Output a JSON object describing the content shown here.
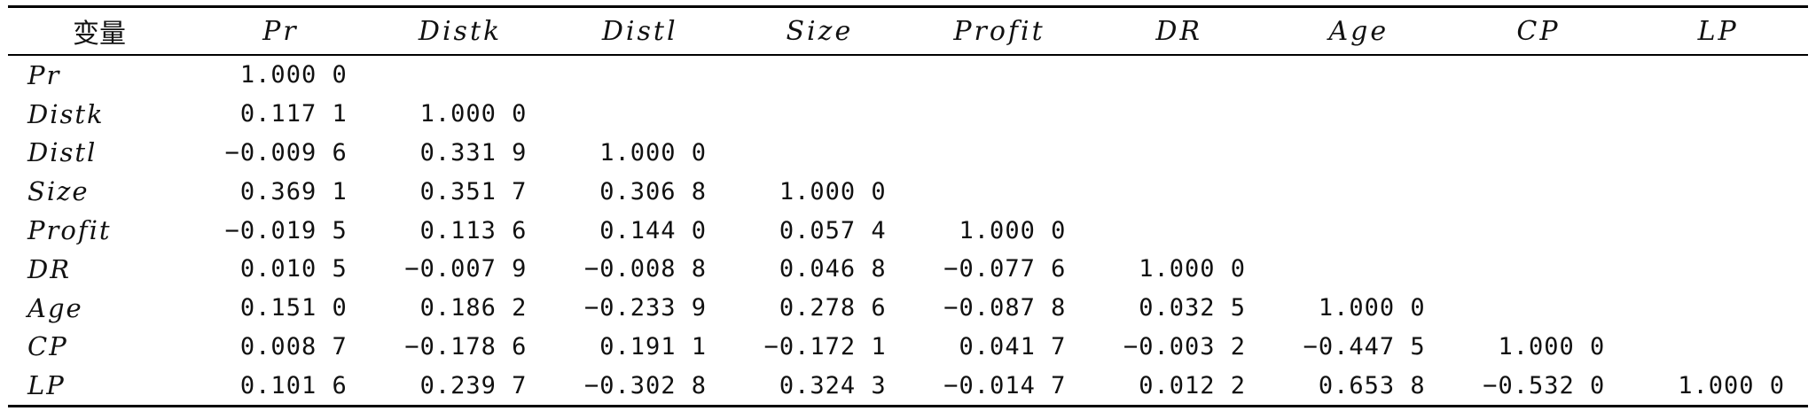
{
  "table": {
    "header": [
      "变量",
      "Pr",
      "Distk",
      "Distl",
      "Size",
      "Profit",
      "DR",
      "Age",
      "CP",
      "LP"
    ],
    "rows": [
      {
        "label": "Pr",
        "values": [
          "1.000 0",
          "",
          "",
          "",
          "",
          "",
          "",
          "",
          ""
        ]
      },
      {
        "label": "Distk",
        "values": [
          "0.117 1",
          "1.000 0",
          "",
          "",
          "",
          "",
          "",
          "",
          ""
        ]
      },
      {
        "label": "Distl",
        "values": [
          "−0.009 6",
          "0.331 9",
          "1.000 0",
          "",
          "",
          "",
          "",
          "",
          ""
        ]
      },
      {
        "label": "Size",
        "values": [
          "0.369 1",
          "0.351 7",
          "0.306 8",
          "1.000 0",
          "",
          "",
          "",
          "",
          ""
        ]
      },
      {
        "label": "Profit",
        "values": [
          "−0.019 5",
          "0.113 6",
          "0.144 0",
          "0.057 4",
          "1.000 0",
          "",
          "",
          "",
          ""
        ]
      },
      {
        "label": "DR",
        "values": [
          "0.010 5",
          "−0.007 9",
          "−0.008 8",
          "0.046 8",
          "−0.077 6",
          "1.000 0",
          "",
          "",
          ""
        ]
      },
      {
        "label": "Age",
        "values": [
          "0.151 0",
          "0.186 2",
          "−0.233 9",
          "0.278 6",
          "−0.087 8",
          "0.032 5",
          "1.000 0",
          "",
          ""
        ]
      },
      {
        "label": "CP",
        "values": [
          "0.008 7",
          "−0.178 6",
          "0.191 1",
          "−0.172 1",
          "0.041 7",
          "−0.003 2",
          "−0.447 5",
          "1.000 0",
          ""
        ]
      },
      {
        "label": "LP",
        "values": [
          "0.101 6",
          "0.239 7",
          "−0.302 8",
          "0.324 3",
          "−0.014 7",
          "0.012 2",
          "0.653 8",
          "−0.532 0",
          "1.000 0"
        ]
      }
    ]
  }
}
